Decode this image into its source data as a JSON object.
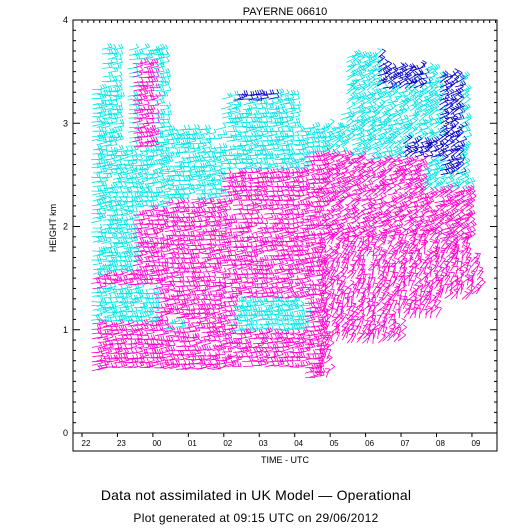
{
  "chart_data": {
    "type": "wind-barb-time-height",
    "title": "PAYERNE 06610",
    "xlabel": "TIME - UTC",
    "ylabel": "HEIGHT km",
    "x_tick_labels": [
      "22",
      "23",
      "00",
      "01",
      "02",
      "03",
      "04",
      "05",
      "06",
      "07",
      "08",
      "09"
    ],
    "y_ticks": [
      0,
      1,
      2,
      3,
      4
    ],
    "ylim": [
      0,
      4
    ],
    "barb_series": [
      {
        "key": "magenta",
        "color": "#ff00cc"
      },
      {
        "key": "cyan",
        "color": "#00e5e5"
      },
      {
        "key": "blue",
        "color": "#0000c8"
      }
    ],
    "grid": false,
    "legend": "none"
  },
  "footer": {
    "status": "Data not assimilated in UK Model — Operational",
    "generated": "Plot generated at 09:15 UTC on 29/06/2012"
  }
}
